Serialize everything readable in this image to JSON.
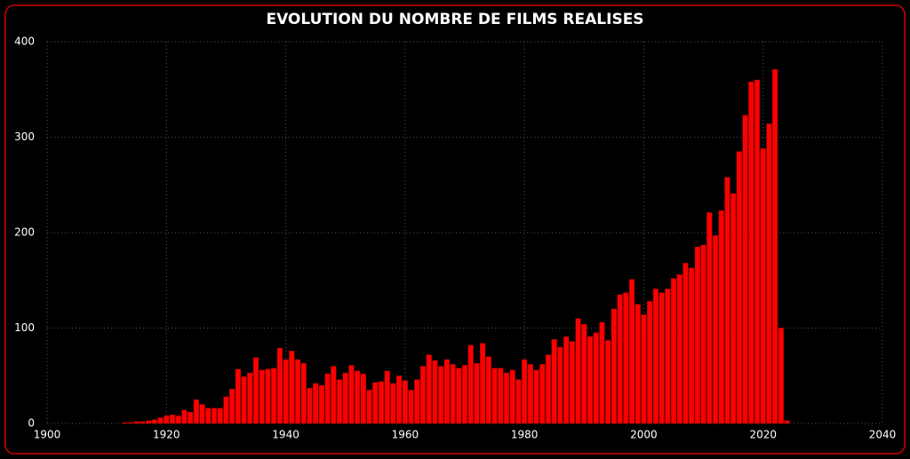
{
  "chart_data": {
    "type": "bar",
    "title": "EVOLUTION DU NOMBRE DE FILMS REALISES",
    "x": [
      1913,
      1914,
      1915,
      1916,
      1917,
      1918,
      1919,
      1920,
      1921,
      1922,
      1923,
      1924,
      1925,
      1926,
      1927,
      1928,
      1929,
      1930,
      1931,
      1932,
      1933,
      1934,
      1935,
      1936,
      1937,
      1938,
      1939,
      1940,
      1941,
      1942,
      1943,
      1944,
      1945,
      1946,
      1947,
      1948,
      1949,
      1950,
      1951,
      1952,
      1953,
      1954,
      1955,
      1956,
      1957,
      1958,
      1959,
      1960,
      1961,
      1962,
      1963,
      1964,
      1965,
      1966,
      1967,
      1968,
      1969,
      1970,
      1971,
      1972,
      1973,
      1974,
      1975,
      1976,
      1977,
      1978,
      1979,
      1980,
      1981,
      1982,
      1983,
      1984,
      1985,
      1986,
      1987,
      1988,
      1989,
      1990,
      1991,
      1992,
      1993,
      1994,
      1995,
      1996,
      1997,
      1998,
      1999,
      2000,
      2001,
      2002,
      2003,
      2004,
      2005,
      2006,
      2007,
      2008,
      2009,
      2010,
      2011,
      2012,
      2013,
      2014,
      2015,
      2016,
      2017,
      2018,
      2019,
      2020,
      2021,
      2022,
      2023,
      2024
    ],
    "values": [
      1,
      1,
      2,
      2,
      3,
      4,
      6,
      8,
      9,
      8,
      14,
      12,
      25,
      20,
      16,
      16,
      16,
      28,
      36,
      57,
      49,
      53,
      69,
      56,
      57,
      58,
      79,
      67,
      76,
      67,
      63,
      37,
      42,
      40,
      52,
      60,
      46,
      53,
      61,
      55,
      52,
      35,
      43,
      44,
      55,
      42,
      50,
      45,
      35,
      46,
      60,
      72,
      66,
      60,
      67,
      62,
      58,
      61,
      82,
      63,
      84,
      70,
      58,
      58,
      53,
      56,
      46,
      67,
      62,
      56,
      62,
      72,
      88,
      80,
      91,
      86,
      110,
      104,
      91,
      95,
      106,
      87,
      120,
      135,
      137,
      151,
      125,
      114,
      128,
      141,
      137,
      141,
      152,
      156,
      168,
      163,
      185,
      187,
      221,
      197,
      223,
      258,
      241,
      285,
      323,
      358,
      360,
      288,
      314,
      371,
      100,
      3
    ],
    "color": "#ff0000",
    "xlim": [
      1900,
      2040
    ],
    "xticks": [
      1900,
      1920,
      1940,
      1960,
      1980,
      2000,
      2020,
      2040
    ],
    "ylim": [
      0,
      400
    ],
    "yticks": [
      0,
      100,
      200,
      300,
      400
    ],
    "grid": true
  }
}
